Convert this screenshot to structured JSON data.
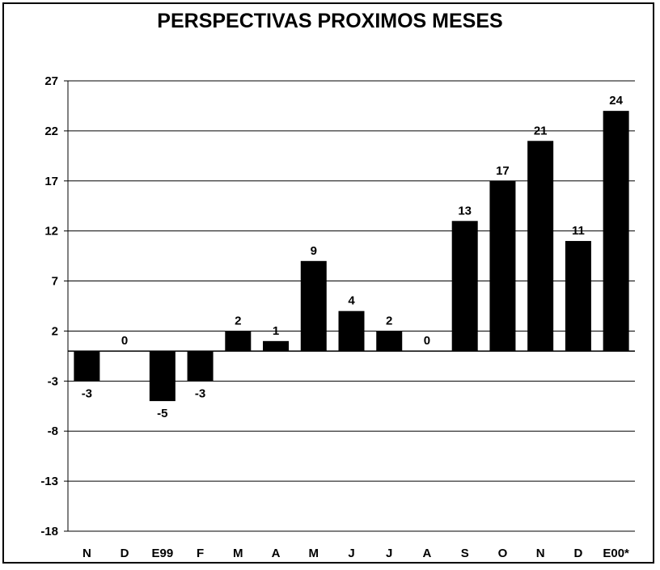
{
  "chart_data": {
    "type": "bar",
    "title": "PERSPECTIVAS PROXIMOS MESES",
    "xlabel": "",
    "ylabel": "",
    "categories": [
      "N",
      "D",
      "E99",
      "F",
      "M",
      "A",
      "M",
      "J",
      "J",
      "A",
      "S",
      "O",
      "N",
      "D",
      "E00*"
    ],
    "values": [
      -3,
      0,
      -5,
      -3,
      2,
      1,
      9,
      4,
      2,
      0,
      13,
      17,
      21,
      11,
      24
    ],
    "ylim": [
      -18,
      27
    ],
    "yticks": [
      27,
      22,
      17,
      12,
      7,
      2,
      -3,
      -8,
      -13,
      -18
    ],
    "grid": true,
    "legend": "none",
    "bar_color": "#000000"
  }
}
